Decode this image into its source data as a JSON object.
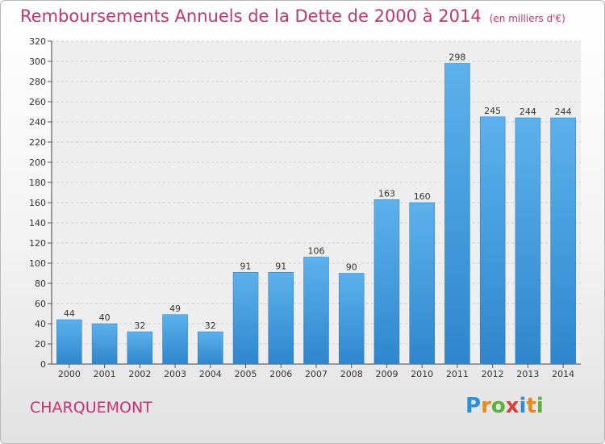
{
  "chart_data": {
    "type": "bar",
    "title": "Remboursements Annuels de la Dette de 2000 à 2014",
    "unit": "(en milliers d'€)",
    "categories": [
      "2000",
      "2001",
      "2002",
      "2003",
      "2004",
      "2005",
      "2006",
      "2007",
      "2008",
      "2009",
      "2010",
      "2011",
      "2012",
      "2013",
      "2014"
    ],
    "values": [
      44,
      40,
      32,
      49,
      32,
      91,
      91,
      106,
      90,
      163,
      160,
      298,
      245,
      244,
      244
    ],
    "ylim": [
      0,
      320
    ],
    "yticks": [
      0,
      20,
      40,
      60,
      80,
      100,
      120,
      140,
      160,
      180,
      200,
      220,
      240,
      260,
      280,
      300,
      320
    ],
    "grid": true,
    "bar_color": "#4a9fe0"
  },
  "footer": {
    "commune": "CHARQUEMONT",
    "logo": [
      "P",
      "r",
      "o",
      "x",
      "i",
      "t",
      "i"
    ],
    "logo_colors": [
      "#2b8fd8",
      "#e88a1a",
      "#59b33a",
      "#d9403a",
      "#2b8fd8",
      "#e88a1a",
      "#59b33a"
    ]
  }
}
